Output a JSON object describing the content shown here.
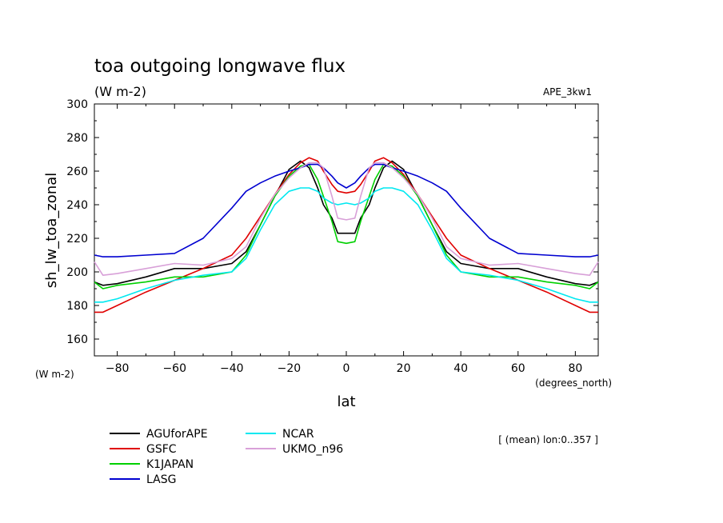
{
  "chart_data": {
    "type": "line",
    "title": "toa outgoing longwave flux",
    "units": "(W m-2)",
    "experiment": "APE_3kw1",
    "xlabel": "lat",
    "ylabel": "sh_lw_toa_zonal",
    "x_units": "(degrees_north)",
    "y_units": "(W m-2)",
    "annotation": "[ (mean) lon:0..357 ]",
    "xlim": [
      -88,
      88
    ],
    "ylim": [
      150,
      300
    ],
    "xticks": [
      -80,
      -60,
      -40,
      -20,
      0,
      20,
      40,
      60,
      80
    ],
    "yticks": [
      160,
      180,
      200,
      220,
      240,
      260,
      280,
      300
    ],
    "x": [
      -88,
      -85,
      -80,
      -70,
      -60,
      -50,
      -40,
      -35,
      -30,
      -25,
      -20,
      -16,
      -13,
      -10,
      -8,
      -5,
      -3,
      0,
      3,
      5,
      8,
      10,
      13,
      16,
      20,
      25,
      30,
      35,
      40,
      50,
      60,
      70,
      80,
      85,
      88
    ],
    "series": [
      {
        "name": "AGUforAPE",
        "color": "#000000",
        "values": [
          194,
          192,
          193,
          197,
          202,
          202,
          205,
          212,
          228,
          245,
          261,
          266,
          262,
          250,
          240,
          232,
          223,
          223,
          223,
          232,
          240,
          250,
          262,
          266,
          261,
          245,
          228,
          212,
          205,
          202,
          202,
          197,
          193,
          192,
          194
        ]
      },
      {
        "name": "GSFC",
        "color": "#e00000",
        "values": [
          176,
          176,
          180,
          188,
          195,
          202,
          210,
          220,
          233,
          246,
          258,
          265,
          268,
          266,
          260,
          252,
          248,
          247,
          248,
          252,
          260,
          266,
          268,
          265,
          258,
          246,
          233,
          220,
          210,
          202,
          195,
          188,
          180,
          176,
          176
        ]
      },
      {
        "name": "K1JAPAN",
        "color": "#00d000",
        "values": [
          194,
          190,
          192,
          194,
          197,
          197,
          200,
          210,
          228,
          245,
          257,
          263,
          264,
          255,
          245,
          230,
          218,
          217,
          218,
          230,
          245,
          255,
          264,
          263,
          257,
          245,
          228,
          210,
          200,
          197,
          197,
          194,
          192,
          190,
          194
        ]
      },
      {
        "name": "LASG",
        "color": "#0000d0",
        "values": [
          210,
          209,
          209,
          210,
          211,
          220,
          238,
          248,
          253,
          257,
          260,
          262,
          264,
          264,
          262,
          257,
          253,
          250,
          253,
          257,
          262,
          264,
          264,
          262,
          260,
          257,
          253,
          248,
          238,
          220,
          211,
          210,
          209,
          209,
          210
        ]
      },
      {
        "name": "NCAR",
        "color": "#00e8f0",
        "values": [
          182,
          182,
          184,
          190,
          195,
          198,
          200,
          208,
          225,
          240,
          248,
          250,
          250,
          248,
          244,
          241,
          240,
          241,
          240,
          241,
          244,
          248,
          250,
          250,
          248,
          240,
          225,
          208,
          200,
          198,
          195,
          190,
          184,
          182,
          182
        ]
      },
      {
        "name": "UKMO_n96",
        "color": "#d8a0d8",
        "values": [
          206,
          198,
          199,
          202,
          205,
          204,
          208,
          215,
          232,
          246,
          256,
          262,
          265,
          265,
          262,
          245,
          232,
          231,
          232,
          245,
          262,
          265,
          265,
          262,
          256,
          246,
          232,
          215,
          208,
          204,
          205,
          202,
          199,
          198,
          206
        ]
      }
    ]
  }
}
